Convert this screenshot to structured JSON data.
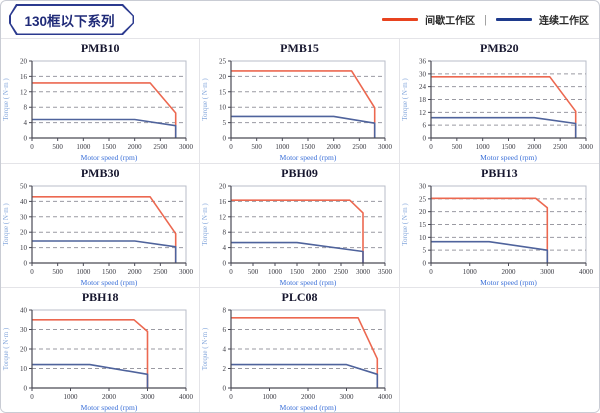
{
  "header": {
    "title": "130框以下系列"
  },
  "legend": {
    "items": [
      {
        "label": "间歇工作区",
        "color": "#e8431f"
      },
      {
        "label": "连续工作区",
        "color": "#1e3a8c"
      }
    ],
    "separator": "|"
  },
  "chart_data": [
    {
      "type": "line",
      "title": "PMB10",
      "xlabel": "Motor speed (rpm)",
      "ylabel": "Torque ( N·m )",
      "xlim": [
        0,
        3000
      ],
      "xticks": [
        0,
        500,
        1000,
        1500,
        2000,
        2500,
        3000
      ],
      "ylim": [
        0,
        20
      ],
      "yticks": [
        0,
        4,
        8,
        12,
        16,
        20
      ],
      "grid": "dashed-horizontal",
      "series": [
        {
          "name": "间歇工作区",
          "color": "#ec6850",
          "points": [
            [
              0,
              14.3
            ],
            [
              2300,
              14.3
            ],
            [
              2800,
              6.5
            ],
            [
              2800,
              0
            ]
          ]
        },
        {
          "name": "连续工作区",
          "color": "#4f639c",
          "points": [
            [
              0,
              4.8
            ],
            [
              2000,
              4.8
            ],
            [
              2800,
              3.2
            ],
            [
              2800,
              0
            ]
          ]
        }
      ]
    },
    {
      "type": "line",
      "title": "PMB15",
      "xlabel": "Motor speed (rpm)",
      "ylabel": "Torque ( N·m )",
      "xlim": [
        0,
        3000
      ],
      "xticks": [
        0,
        500,
        1000,
        1500,
        2000,
        2500,
        3000
      ],
      "ylim": [
        0,
        25
      ],
      "yticks": [
        0,
        5,
        10,
        15,
        20,
        25
      ],
      "grid": "dashed-horizontal",
      "series": [
        {
          "name": "间歇工作区",
          "color": "#ec6850",
          "points": [
            [
              0,
              21.8
            ],
            [
              2350,
              21.8
            ],
            [
              2800,
              9.8
            ],
            [
              2800,
              0
            ]
          ]
        },
        {
          "name": "连续工作区",
          "color": "#4f639c",
          "points": [
            [
              0,
              7
            ],
            [
              2000,
              7
            ],
            [
              2800,
              4.8
            ],
            [
              2800,
              0
            ]
          ]
        }
      ]
    },
    {
      "type": "line",
      "title": "PMB20",
      "xlabel": "Motor speed (rpm)",
      "ylabel": "Torque ( N·m )",
      "xlim": [
        0,
        3000
      ],
      "xticks": [
        0,
        500,
        1000,
        1500,
        2000,
        2500,
        3000
      ],
      "ylim": [
        0,
        36
      ],
      "yticks": [
        0,
        6,
        12,
        18,
        24,
        30,
        36
      ],
      "grid": "dashed-horizontal",
      "series": [
        {
          "name": "间歇工作区",
          "color": "#ec6850",
          "points": [
            [
              0,
              28.6
            ],
            [
              2300,
              28.6
            ],
            [
              2800,
              12.5
            ],
            [
              2800,
              0
            ]
          ]
        },
        {
          "name": "连续工作区",
          "color": "#4f639c",
          "points": [
            [
              0,
              9.5
            ],
            [
              2000,
              9.5
            ],
            [
              2800,
              6.8
            ],
            [
              2800,
              0
            ]
          ]
        }
      ]
    },
    {
      "type": "line",
      "title": "PMB30",
      "xlabel": "Motor speed (rpm)",
      "ylabel": "Torque ( N·m )",
      "xlim": [
        0,
        3000
      ],
      "xticks": [
        0,
        500,
        1000,
        1500,
        2000,
        2500,
        3000
      ],
      "ylim": [
        0,
        50
      ],
      "yticks": [
        0,
        10,
        20,
        30,
        40,
        50
      ],
      "grid": "dashed-horizontal",
      "series": [
        {
          "name": "间歇工作区",
          "color": "#ec6850",
          "points": [
            [
              0,
              43
            ],
            [
              2300,
              43
            ],
            [
              2800,
              19
            ],
            [
              2800,
              0
            ]
          ]
        },
        {
          "name": "连续工作区",
          "color": "#4f639c",
          "points": [
            [
              0,
              14.3
            ],
            [
              2000,
              14.3
            ],
            [
              2800,
              10.5
            ],
            [
              2800,
              0
            ]
          ]
        }
      ]
    },
    {
      "type": "line",
      "title": "PBH09",
      "xlabel": "Motor speed (rpm)",
      "ylabel": "Torque ( N·m )",
      "xlim": [
        0,
        3500
      ],
      "xticks": [
        0,
        500,
        1000,
        1500,
        2000,
        2500,
        3000,
        3500
      ],
      "ylim": [
        0,
        20
      ],
      "yticks": [
        0,
        4,
        8,
        12,
        16,
        20
      ],
      "grid": "dashed-horizontal",
      "series": [
        {
          "name": "间歇工作区",
          "color": "#ec6850",
          "points": [
            [
              0,
              16.3
            ],
            [
              2700,
              16.3
            ],
            [
              3000,
              13
            ],
            [
              3000,
              0
            ]
          ]
        },
        {
          "name": "连续工作区",
          "color": "#4f639c",
          "points": [
            [
              0,
              5.3
            ],
            [
              1500,
              5.3
            ],
            [
              3000,
              3
            ],
            [
              3000,
              0
            ]
          ]
        }
      ]
    },
    {
      "type": "line",
      "title": "PBH13",
      "xlabel": "Motor speed (rpm)",
      "ylabel": "Torque ( N·m )",
      "xlim": [
        0,
        4000
      ],
      "xticks": [
        0,
        1000,
        2000,
        3000,
        4000
      ],
      "ylim": [
        0,
        30
      ],
      "yticks": [
        0,
        5,
        10,
        15,
        20,
        25,
        30
      ],
      "grid": "dashed-horizontal",
      "series": [
        {
          "name": "间歇工作区",
          "color": "#ec6850",
          "points": [
            [
              0,
              25.2
            ],
            [
              2700,
              25.2
            ],
            [
              3000,
              21.5
            ],
            [
              3000,
              0
            ]
          ]
        },
        {
          "name": "连续工作区",
          "color": "#4f639c",
          "points": [
            [
              0,
              8.3
            ],
            [
              1500,
              8.3
            ],
            [
              3000,
              5
            ],
            [
              3000,
              0
            ]
          ]
        }
      ]
    },
    {
      "type": "line",
      "title": "PBH18",
      "xlabel": "Motor speed (rpm)",
      "ylabel": "Torque ( N·m )",
      "xlim": [
        0,
        4000
      ],
      "xticks": [
        0,
        1000,
        2000,
        3000,
        4000
      ],
      "ylim": [
        0,
        40
      ],
      "yticks": [
        0,
        10,
        20,
        30,
        40
      ],
      "grid": "dashed-horizontal",
      "series": [
        {
          "name": "间歇工作区",
          "color": "#ec6850",
          "points": [
            [
              0,
              35
            ],
            [
              2650,
              35
            ],
            [
              3000,
              29
            ],
            [
              3000,
              0
            ]
          ]
        },
        {
          "name": "连续工作区",
          "color": "#4f639c",
          "points": [
            [
              0,
              12
            ],
            [
              1500,
              12
            ],
            [
              3000,
              7
            ],
            [
              3000,
              0
            ]
          ]
        }
      ]
    },
    {
      "type": "line",
      "title": "PLC08",
      "xlabel": "Motor speed (rpm)",
      "ylabel": "Torque ( N·m )",
      "xlim": [
        0,
        4000
      ],
      "xticks": [
        0,
        1000,
        2000,
        3000,
        4000
      ],
      "ylim": [
        0,
        8
      ],
      "yticks": [
        0,
        2,
        4,
        6,
        8
      ],
      "grid": "dashed-horizontal",
      "series": [
        {
          "name": "间歇工作区",
          "color": "#ec6850",
          "points": [
            [
              0,
              7.2
            ],
            [
              3300,
              7.2
            ],
            [
              3800,
              3
            ],
            [
              3800,
              0
            ]
          ]
        },
        {
          "name": "连续工作区",
          "color": "#4f639c",
          "points": [
            [
              0,
              2.4
            ],
            [
              3000,
              2.4
            ],
            [
              3800,
              1.4
            ],
            [
              3800,
              0
            ]
          ]
        }
      ]
    }
  ]
}
